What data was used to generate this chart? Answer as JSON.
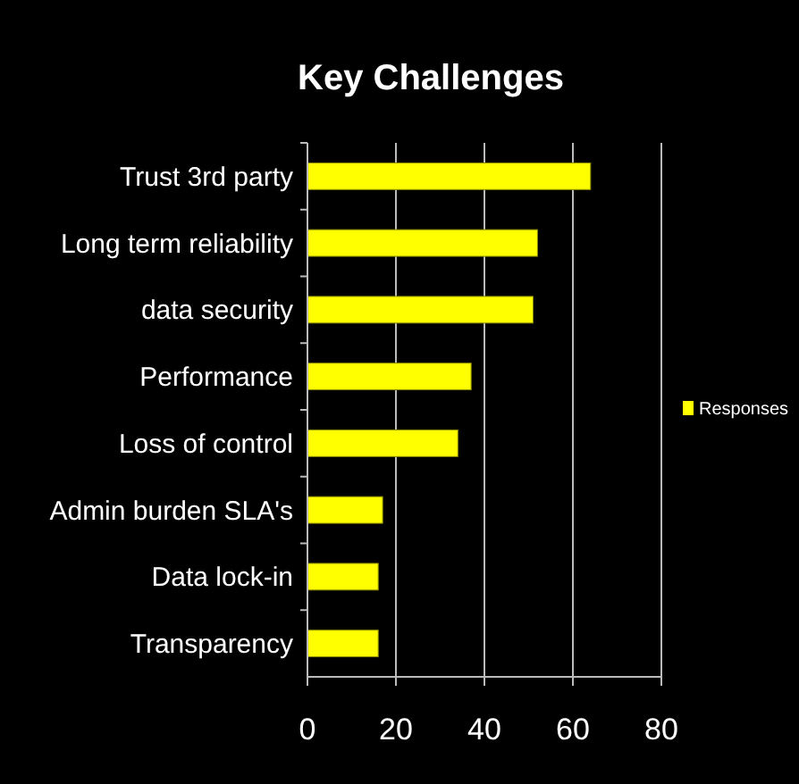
{
  "chart_data": {
    "type": "bar",
    "orientation": "horizontal",
    "title": "Key Challenges",
    "categories": [
      "Trust 3rd party",
      "Long term reliability",
      "data security",
      "Performance",
      "Loss of control",
      "Admin burden SLA's",
      "Data lock-in",
      "Transparency"
    ],
    "series": [
      {
        "name": "Responses",
        "color": "#ffff00",
        "values": [
          64,
          52,
          51,
          37,
          34,
          17,
          16,
          16
        ]
      }
    ],
    "xlim": [
      0,
      80
    ],
    "xticks": [
      0,
      20,
      40,
      60,
      80
    ],
    "grid": "x",
    "legend": "right"
  }
}
